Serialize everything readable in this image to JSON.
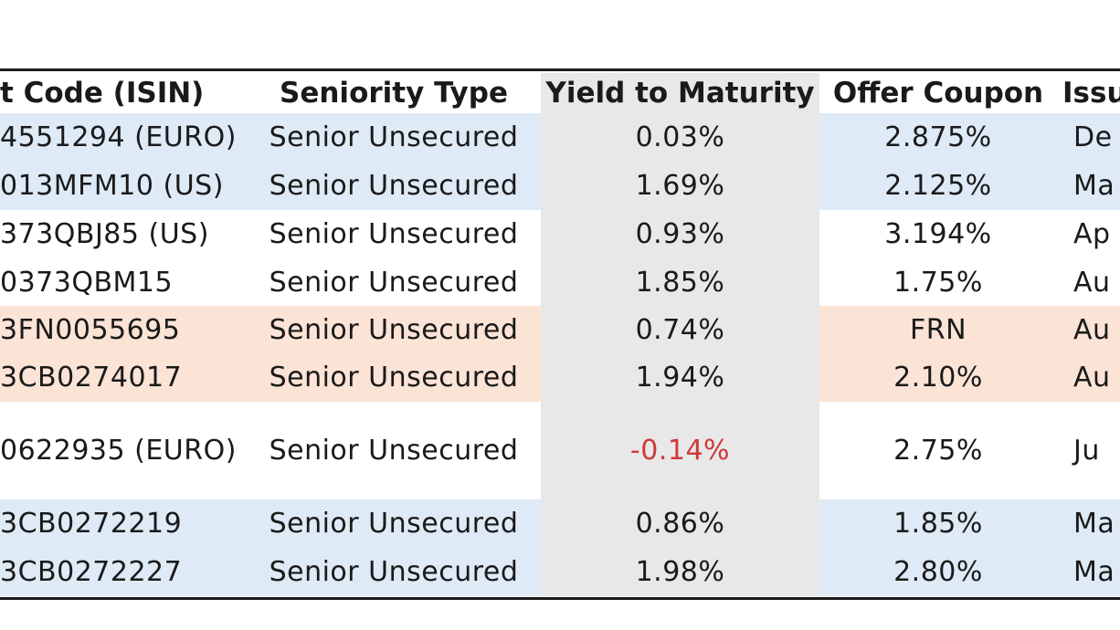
{
  "table": {
    "headers": {
      "isin": "t Code (ISIN)",
      "seniority": "Seniority Type",
      "ytm": "Yield to Maturity",
      "coupon": "Offer Coupon",
      "issue": "Issue"
    },
    "rows": [
      {
        "isin": "4551294 (EURO)",
        "seniority": "Senior Unsecured",
        "ytm": "0.03%",
        "coupon": "2.875%",
        "issue": "De"
      },
      {
        "isin": "013MFM10 (US)",
        "seniority": "Senior Unsecured",
        "ytm": "1.69%",
        "coupon": "2.125%",
        "issue": "Ma"
      },
      {
        "isin": "373QBJ85 (US)",
        "seniority": "Senior Unsecured",
        "ytm": "0.93%",
        "coupon": "3.194%",
        "issue": "Ap"
      },
      {
        "isin": "0373QBM15",
        "seniority": "Senior Unsecured",
        "ytm": "1.85%",
        "coupon": "1.75%",
        "issue": "Au"
      },
      {
        "isin": "3FN0055695",
        "seniority": "Senior Unsecured",
        "ytm": "0.74%",
        "coupon": "FRN",
        "issue": "Au"
      },
      {
        "isin": "3CB0274017",
        "seniority": "Senior Unsecured",
        "ytm": "1.94%",
        "coupon": "2.10%",
        "issue": "Au"
      },
      {
        "isin": "0622935 (EURO)",
        "seniority": "Senior Unsecured",
        "ytm": "-0.14%",
        "coupon": "2.75%",
        "issue": "Ju"
      },
      {
        "isin": "3CB0272219",
        "seniority": "Senior Unsecured",
        "ytm": "0.86%",
        "coupon": "1.85%",
        "issue": "Ma"
      },
      {
        "isin": "3CB0272227",
        "seniority": "Senior Unsecured",
        "ytm": "1.98%",
        "coupon": "2.80%",
        "issue": "Ma"
      }
    ]
  },
  "colors": {
    "blue_band": "#deeaf6",
    "peach_band": "#fbe3d6",
    "gray_column": "#e8e8e8",
    "negative_text": "#d0383b",
    "rule": "#1a1a1a"
  }
}
